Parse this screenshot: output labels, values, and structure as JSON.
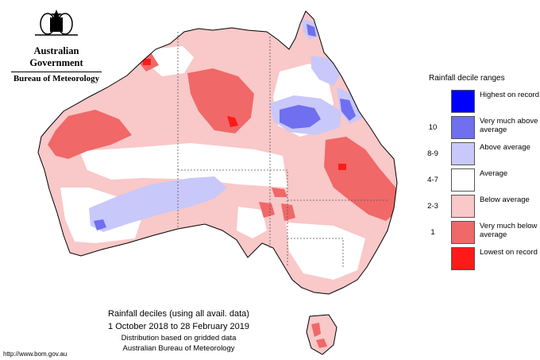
{
  "branding": {
    "government": "Australian Government",
    "agency": "Bureau of Meteorology"
  },
  "legend": {
    "title": "Rainfall decile ranges",
    "items": [
      {
        "key": "",
        "label": "Highest on record",
        "color": "#0000ff"
      },
      {
        "key": "10",
        "label": "Very much above average",
        "color": "#6f6ff0"
      },
      {
        "key": "8-9",
        "label": "Above average",
        "color": "#c8c8fa"
      },
      {
        "key": "4-7",
        "label": "Average",
        "color": "#ffffff"
      },
      {
        "key": "2-3",
        "label": "Below average",
        "color": "#f9c8c8"
      },
      {
        "key": "1",
        "label": "Very much below average",
        "color": "#f06868"
      },
      {
        "key": "",
        "label": "Lowest on record",
        "color": "#ff1a1a"
      }
    ]
  },
  "caption": {
    "title": "Rainfall deciles (using all avail. data)",
    "period": "1 October 2018 to 28 February 2019",
    "note1": "Distribution based on gridded data",
    "note2": "Australian Bureau of Meteorology"
  },
  "footer": {
    "url": "http://www.bom.gov.au"
  }
}
